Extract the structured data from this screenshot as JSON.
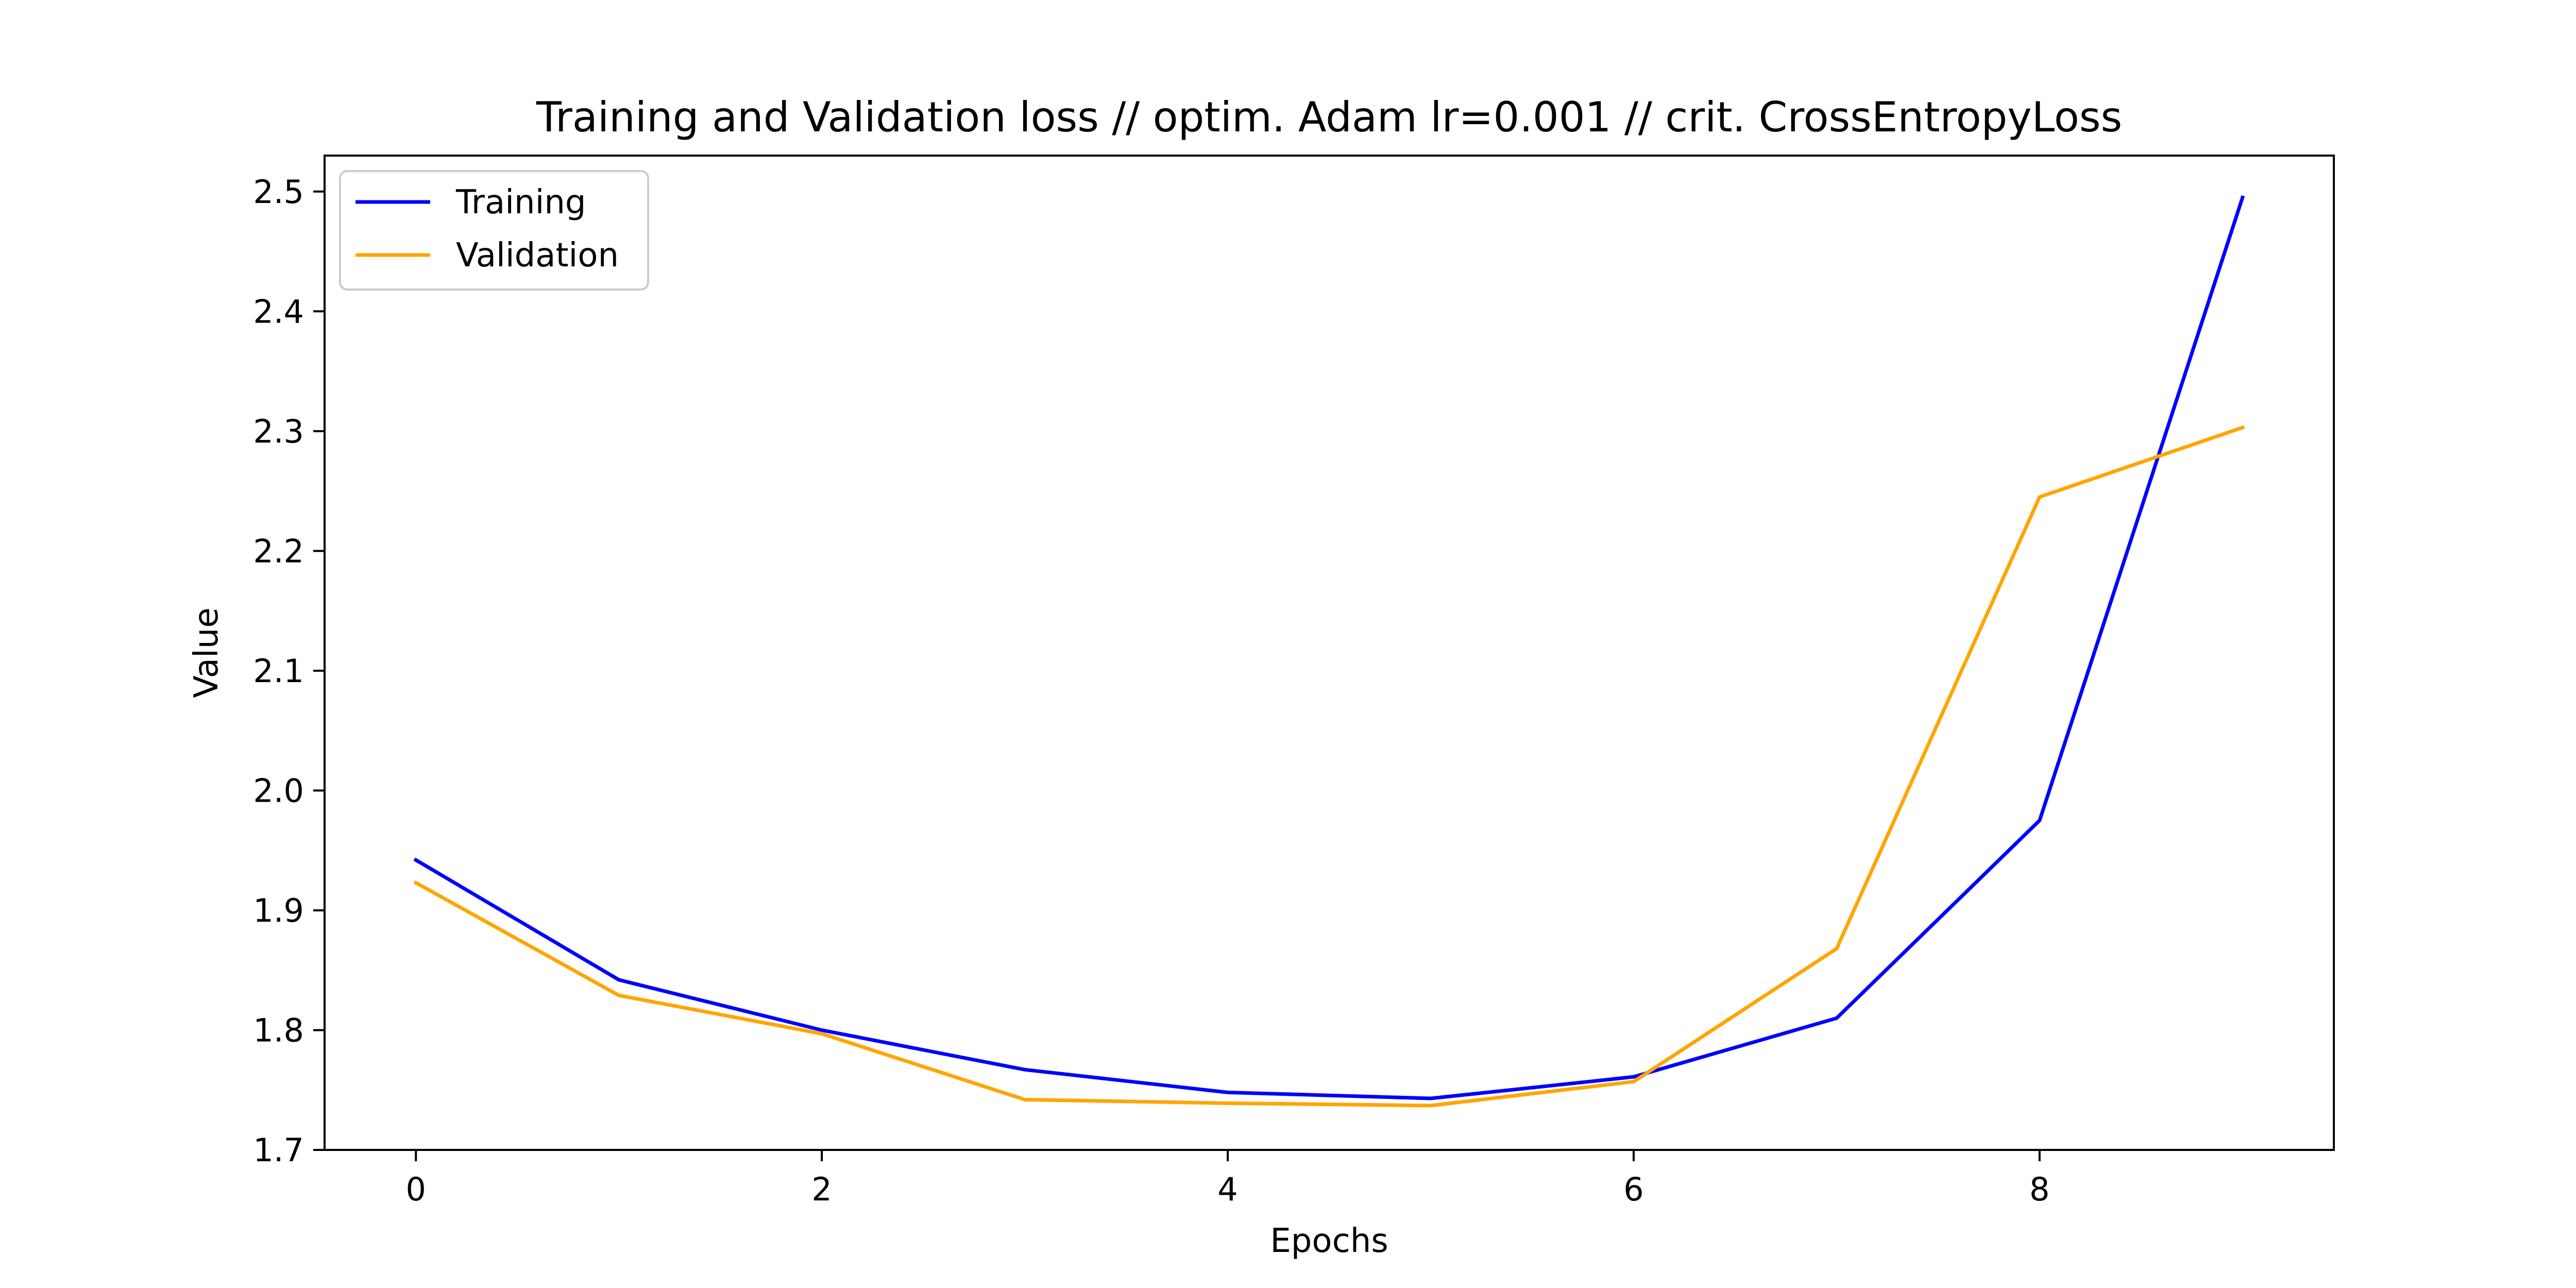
{
  "chart_data": {
    "type": "line",
    "title": "Training and Validation loss // optim. Adam lr=0.001 // crit. CrossEntropyLoss",
    "xlabel": "Epochs",
    "ylabel": "Value",
    "xlim": [
      -0.45,
      9.45
    ],
    "ylim": [
      1.7,
      2.53
    ],
    "xticks": [
      0,
      2,
      4,
      6,
      8
    ],
    "yticks": [
      1.7,
      1.8,
      1.9,
      2.0,
      2.1,
      2.2,
      2.3,
      2.4,
      2.5
    ],
    "x": [
      0,
      1,
      2,
      3,
      4,
      5,
      6,
      7,
      8,
      9
    ],
    "series": [
      {
        "name": "Training",
        "color": "#0000ff",
        "values": [
          1.942,
          1.842,
          1.8,
          1.767,
          1.748,
          1.743,
          1.761,
          1.81,
          1.975,
          2.495
        ]
      },
      {
        "name": "Validation",
        "color": "#ffa500",
        "values": [
          1.923,
          1.829,
          1.797,
          1.742,
          1.739,
          1.737,
          1.757,
          1.868,
          2.245,
          2.303
        ]
      }
    ],
    "legend_position": "top-left",
    "grid": false
  }
}
